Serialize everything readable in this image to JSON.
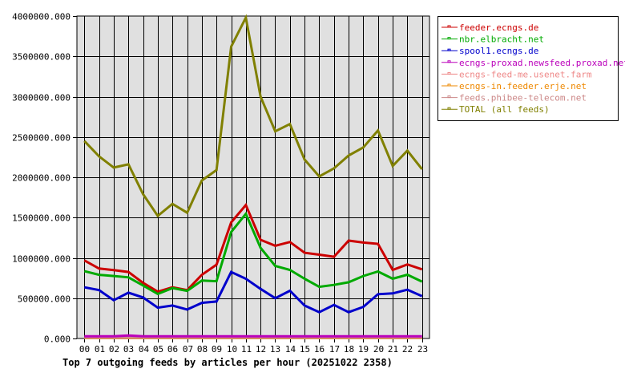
{
  "chart_data": {
    "type": "line",
    "title": "Top 7 outgoing feeds by articles per hour (20251022 2358)",
    "xlabel": "",
    "ylabel": "",
    "ylim": [
      0,
      4000000
    ],
    "yticks": [
      0,
      500000,
      1000000,
      1500000,
      2000000,
      2500000,
      3000000,
      3500000,
      4000000
    ],
    "ytick_labels": [
      "0.000",
      "500000.000",
      "1000000.000",
      "1500000.000",
      "2000000.000",
      "2500000.000",
      "3000000.000",
      "3500000.000",
      "4000000.000"
    ],
    "grid": true,
    "legend_position": "right",
    "categories": [
      "00",
      "01",
      "02",
      "03",
      "04",
      "05",
      "06",
      "07",
      "08",
      "09",
      "10",
      "11",
      "12",
      "13",
      "14",
      "15",
      "16",
      "17",
      "18",
      "19",
      "20",
      "21",
      "22",
      "23"
    ],
    "series": [
      {
        "name": "feeder.ecngs.de",
        "color": "#cc0000",
        "values": [
          968000,
          868000,
          848000,
          825000,
          690000,
          580000,
          635000,
          600000,
          790000,
          915000,
          1440000,
          1656000,
          1224000,
          1150000,
          1197000,
          1064000,
          1040000,
          1014000,
          1214000,
          1190000,
          1174000,
          851000,
          918000,
          858000
        ]
      },
      {
        "name": "nbr.elbracht.net",
        "color": "#00aa00",
        "values": [
          835000,
          790000,
          775000,
          758000,
          658000,
          552000,
          625000,
          590000,
          718000,
          710000,
          1320000,
          1546000,
          1124000,
          900000,
          851000,
          741000,
          641000,
          665000,
          698000,
          775000,
          831000,
          741000,
          791000,
          705000
        ]
      },
      {
        "name": "spool1.ecngs.de",
        "color": "#0000cc",
        "values": [
          635000,
          600000,
          475000,
          568000,
          508000,
          382000,
          409000,
          359000,
          442000,
          459000,
          825000,
          741000,
          615000,
          500000,
          592000,
          409000,
          326000,
          416000,
          326000,
          392000,
          549000,
          559000,
          605000,
          525000
        ]
      },
      {
        "name": "ecngs-proxad.newsfeed.proxad.net",
        "color": "#bb00bb",
        "values": [
          27000,
          27000,
          27000,
          37000,
          27000,
          27000,
          27000,
          27000,
          27000,
          27000,
          27000,
          27000,
          27000,
          27000,
          27000,
          27000,
          27000,
          27000,
          27000,
          27000,
          27000,
          27000,
          27000,
          27000
        ]
      },
      {
        "name": "ecngs-feed-me.usenet.farm",
        "color": "#ee8888",
        "values": [
          10000,
          10000,
          10000,
          10000,
          10000,
          10000,
          10000,
          10000,
          10000,
          10000,
          10000,
          10000,
          10000,
          10000,
          10000,
          10000,
          10000,
          10000,
          10000,
          10000,
          10000,
          10000,
          10000,
          10000
        ]
      },
      {
        "name": "ecngs-in.feeder.erje.net",
        "color": "#ee8800",
        "values": [
          5000,
          5000,
          5000,
          5000,
          5000,
          5000,
          5000,
          5000,
          5000,
          5000,
          5000,
          5000,
          5000,
          5000,
          5000,
          5000,
          5000,
          5000,
          5000,
          5000,
          5000,
          5000,
          5000,
          5000
        ]
      },
      {
        "name": "feeds.phibee-telecom.net",
        "color": "#cc8888",
        "values": [
          10000,
          10000,
          10000,
          10000,
          10000,
          10000,
          10000,
          10000,
          10000,
          10000,
          10000,
          10000,
          10000,
          10000,
          10000,
          10000,
          10000,
          10000,
          10000,
          10000,
          10000,
          10000,
          10000,
          10000
        ]
      },
      {
        "name": "TOTAL (all feeds)",
        "color": "#808000",
        "values": [
          2450000,
          2260000,
          2120000,
          2160000,
          1790000,
          1520000,
          1670000,
          1560000,
          1960000,
          2090000,
          3620000,
          3980000,
          3000000,
          2570000,
          2660000,
          2220000,
          2010000,
          2110000,
          2270000,
          2370000,
          2580000,
          2140000,
          2330000,
          2100000
        ]
      }
    ]
  },
  "colors": {
    "plot_background": "#e0e0e0",
    "grid": "#000000",
    "page_background": "#ffffff"
  }
}
